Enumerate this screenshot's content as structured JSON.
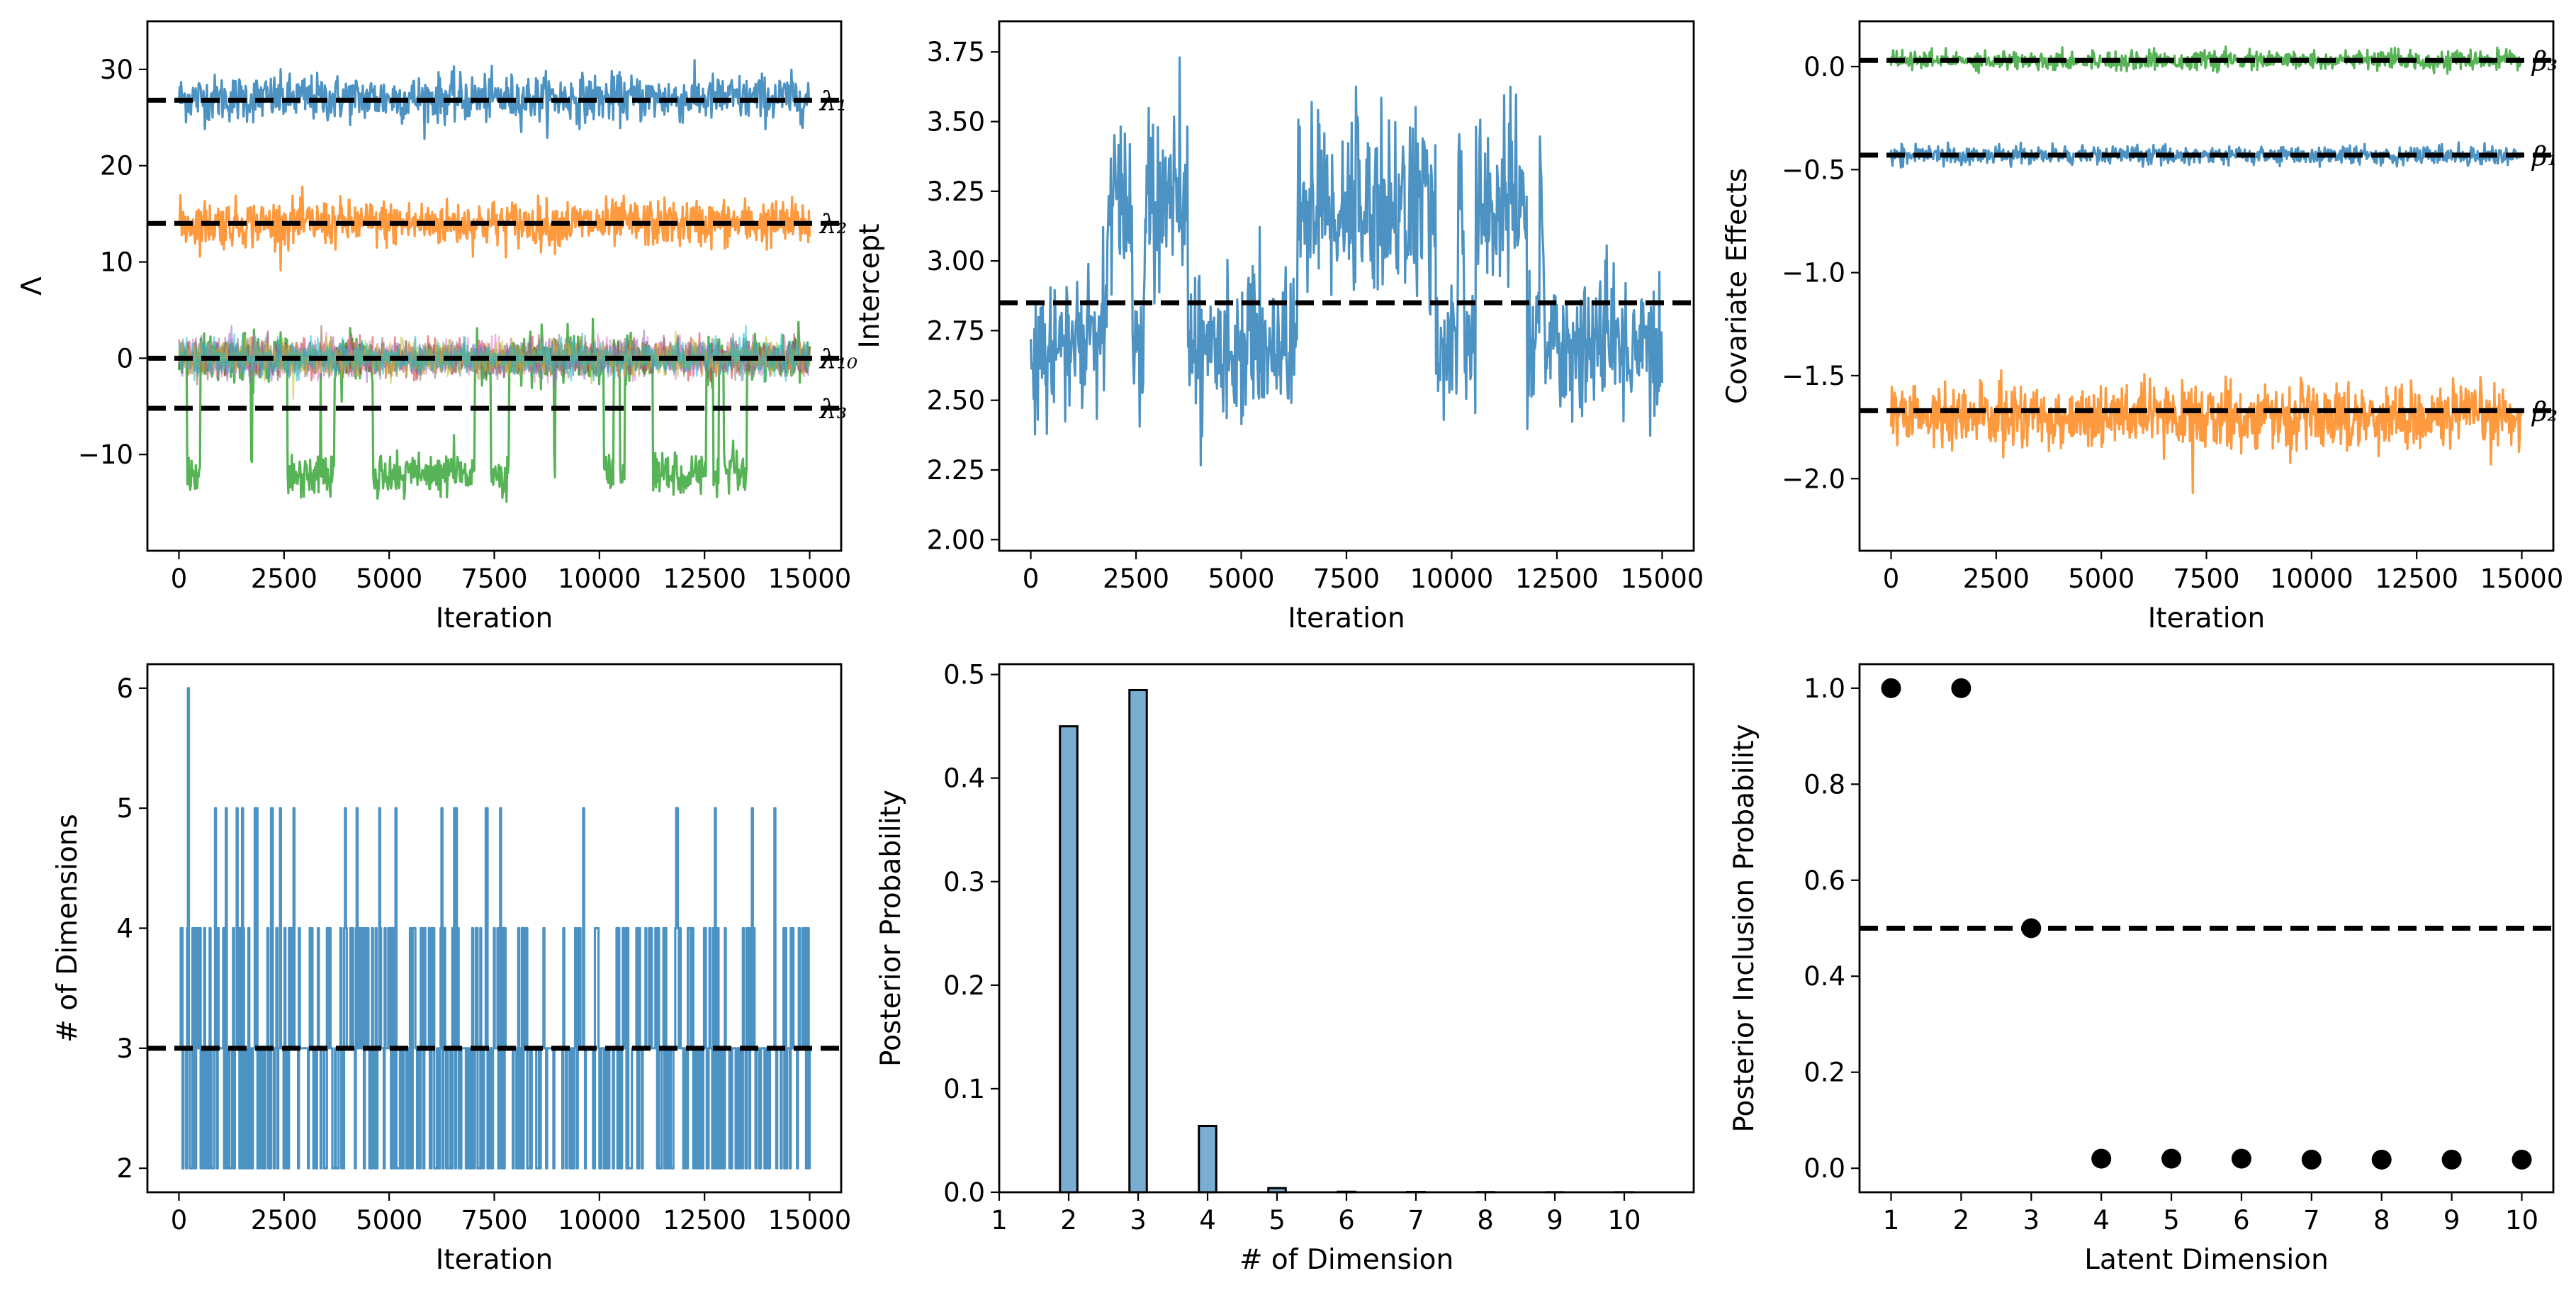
{
  "chart_data": [
    {
      "panel": "A",
      "type": "line",
      "xlabel": "Iteration",
      "ylabel": "Λ",
      "xlim": [
        -750,
        15750
      ],
      "ylim": [
        -20,
        35
      ],
      "xticks": [
        0,
        2500,
        5000,
        7500,
        10000,
        12500,
        15000
      ],
      "yticks": [
        -10,
        0,
        10,
        20,
        30
      ],
      "series": [
        {
          "name": "λ1",
          "color": "#1f77b4",
          "mean": 27,
          "spread": 2.2,
          "reference": 26.8
        },
        {
          "name": "λ2",
          "color": "#ff7f0e",
          "mean": 14,
          "spread": 2.2,
          "reference": 14.0
        },
        {
          "name": "λ3",
          "color": "#2ca02c",
          "mean_high": 0,
          "mean_low": -12,
          "spread": 2.0,
          "reference": -5.2
        },
        {
          "name": "λ4–λ10",
          "colors": [
            "#d62728",
            "#9467bd",
            "#8c564b",
            "#e377c2",
            "#7f7f7f",
            "#bcbd22",
            "#17becf"
          ],
          "mean": 0,
          "spread": 1.6,
          "reference": 0.0
        }
      ],
      "annotations": [
        {
          "text": "λ₁",
          "y": 26.8
        },
        {
          "text": "λ₂",
          "y": 14.0
        },
        {
          "text": "λ₁₀",
          "y": 0.0
        },
        {
          "text": "λ₃",
          "y": -5.2
        }
      ]
    },
    {
      "panel": "B",
      "type": "line",
      "xlabel": "Iteration",
      "ylabel": "Intercept",
      "xlim": [
        -750,
        15750
      ],
      "ylim": [
        1.96,
        3.86
      ],
      "xticks": [
        0,
        2500,
        5000,
        7500,
        10000,
        12500,
        15000
      ],
      "yticks": [
        2.0,
        2.25,
        2.5,
        2.75,
        3.0,
        3.25,
        3.5,
        3.75
      ],
      "series": [
        {
          "name": "intercept",
          "color": "#1f77b4",
          "mean_high": 3.2,
          "mean_low": 2.7,
          "spread": 0.15,
          "reference": 2.85
        }
      ]
    },
    {
      "panel": "C",
      "type": "line",
      "xlabel": "Iteration",
      "ylabel": "Covariate Effects",
      "xlim": [
        -750,
        15750
      ],
      "ylim": [
        -2.35,
        0.22
      ],
      "xticks": [
        0,
        2500,
        5000,
        7500,
        10000,
        12500,
        15000
      ],
      "yticks": [
        -2.0,
        -1.5,
        -1.0,
        -0.5,
        0.0
      ],
      "series": [
        {
          "name": "β3",
          "color": "#2ca02c",
          "mean": 0.03,
          "spread": 0.04,
          "reference": 0.03
        },
        {
          "name": "β1",
          "color": "#1f77b4",
          "mean": -0.43,
          "spread": 0.04,
          "reference": -0.43
        },
        {
          "name": "β2",
          "color": "#ff7f0e",
          "mean": -1.7,
          "spread": 0.14,
          "reference": -1.67
        }
      ],
      "annotations": [
        {
          "text": "β₃",
          "y": 0.03
        },
        {
          "text": "β₁",
          "y": -0.43
        },
        {
          "text": "β₂",
          "y": -1.67
        }
      ]
    },
    {
      "panel": "D",
      "type": "line",
      "xlabel": "Iteration",
      "ylabel": "# of Dimensions",
      "xlim": [
        -750,
        15750
      ],
      "ylim": [
        1.8,
        6.2
      ],
      "xticks": [
        0,
        2500,
        5000,
        7500,
        10000,
        12500,
        15000
      ],
      "yticks": [
        2,
        3,
        4,
        5,
        6
      ],
      "series": [
        {
          "name": "dimensions",
          "color": "#1f77b4",
          "reference": 3
        }
      ]
    },
    {
      "panel": "E",
      "type": "bar",
      "xlabel": "# of Dimension",
      "ylabel": "Posterior Probability",
      "xlim": [
        1,
        11
      ],
      "ylim": [
        0,
        0.51
      ],
      "xticks": [
        1,
        2,
        3,
        4,
        5,
        6,
        7,
        8,
        9,
        10
      ],
      "yticks": [
        0.0,
        0.1,
        0.2,
        0.3,
        0.4,
        0.5
      ],
      "categories": [
        1,
        2,
        3,
        4,
        5,
        6,
        7,
        8,
        9,
        10
      ],
      "values": [
        0,
        0.45,
        0.485,
        0.064,
        0.004,
        0.0005,
        0.0003,
        0.0002,
        0.0001,
        0.0001
      ],
      "color": "#1f77b4"
    },
    {
      "panel": "F",
      "type": "scatter",
      "xlabel": "Latent Dimension",
      "ylabel": "Posterior Inclusion Probability",
      "xlim": [
        0.55,
        10.45
      ],
      "ylim": [
        -0.05,
        1.05
      ],
      "xticks": [
        1,
        2,
        3,
        4,
        5,
        6,
        7,
        8,
        9,
        10
      ],
      "yticks": [
        0.0,
        0.2,
        0.4,
        0.6,
        0.8,
        1.0
      ],
      "x": [
        1,
        2,
        3,
        4,
        5,
        6,
        7,
        8,
        9,
        10
      ],
      "y": [
        1.0,
        1.0,
        0.5,
        0.02,
        0.02,
        0.02,
        0.018,
        0.018,
        0.018,
        0.018
      ],
      "reference": 0.5
    }
  ]
}
